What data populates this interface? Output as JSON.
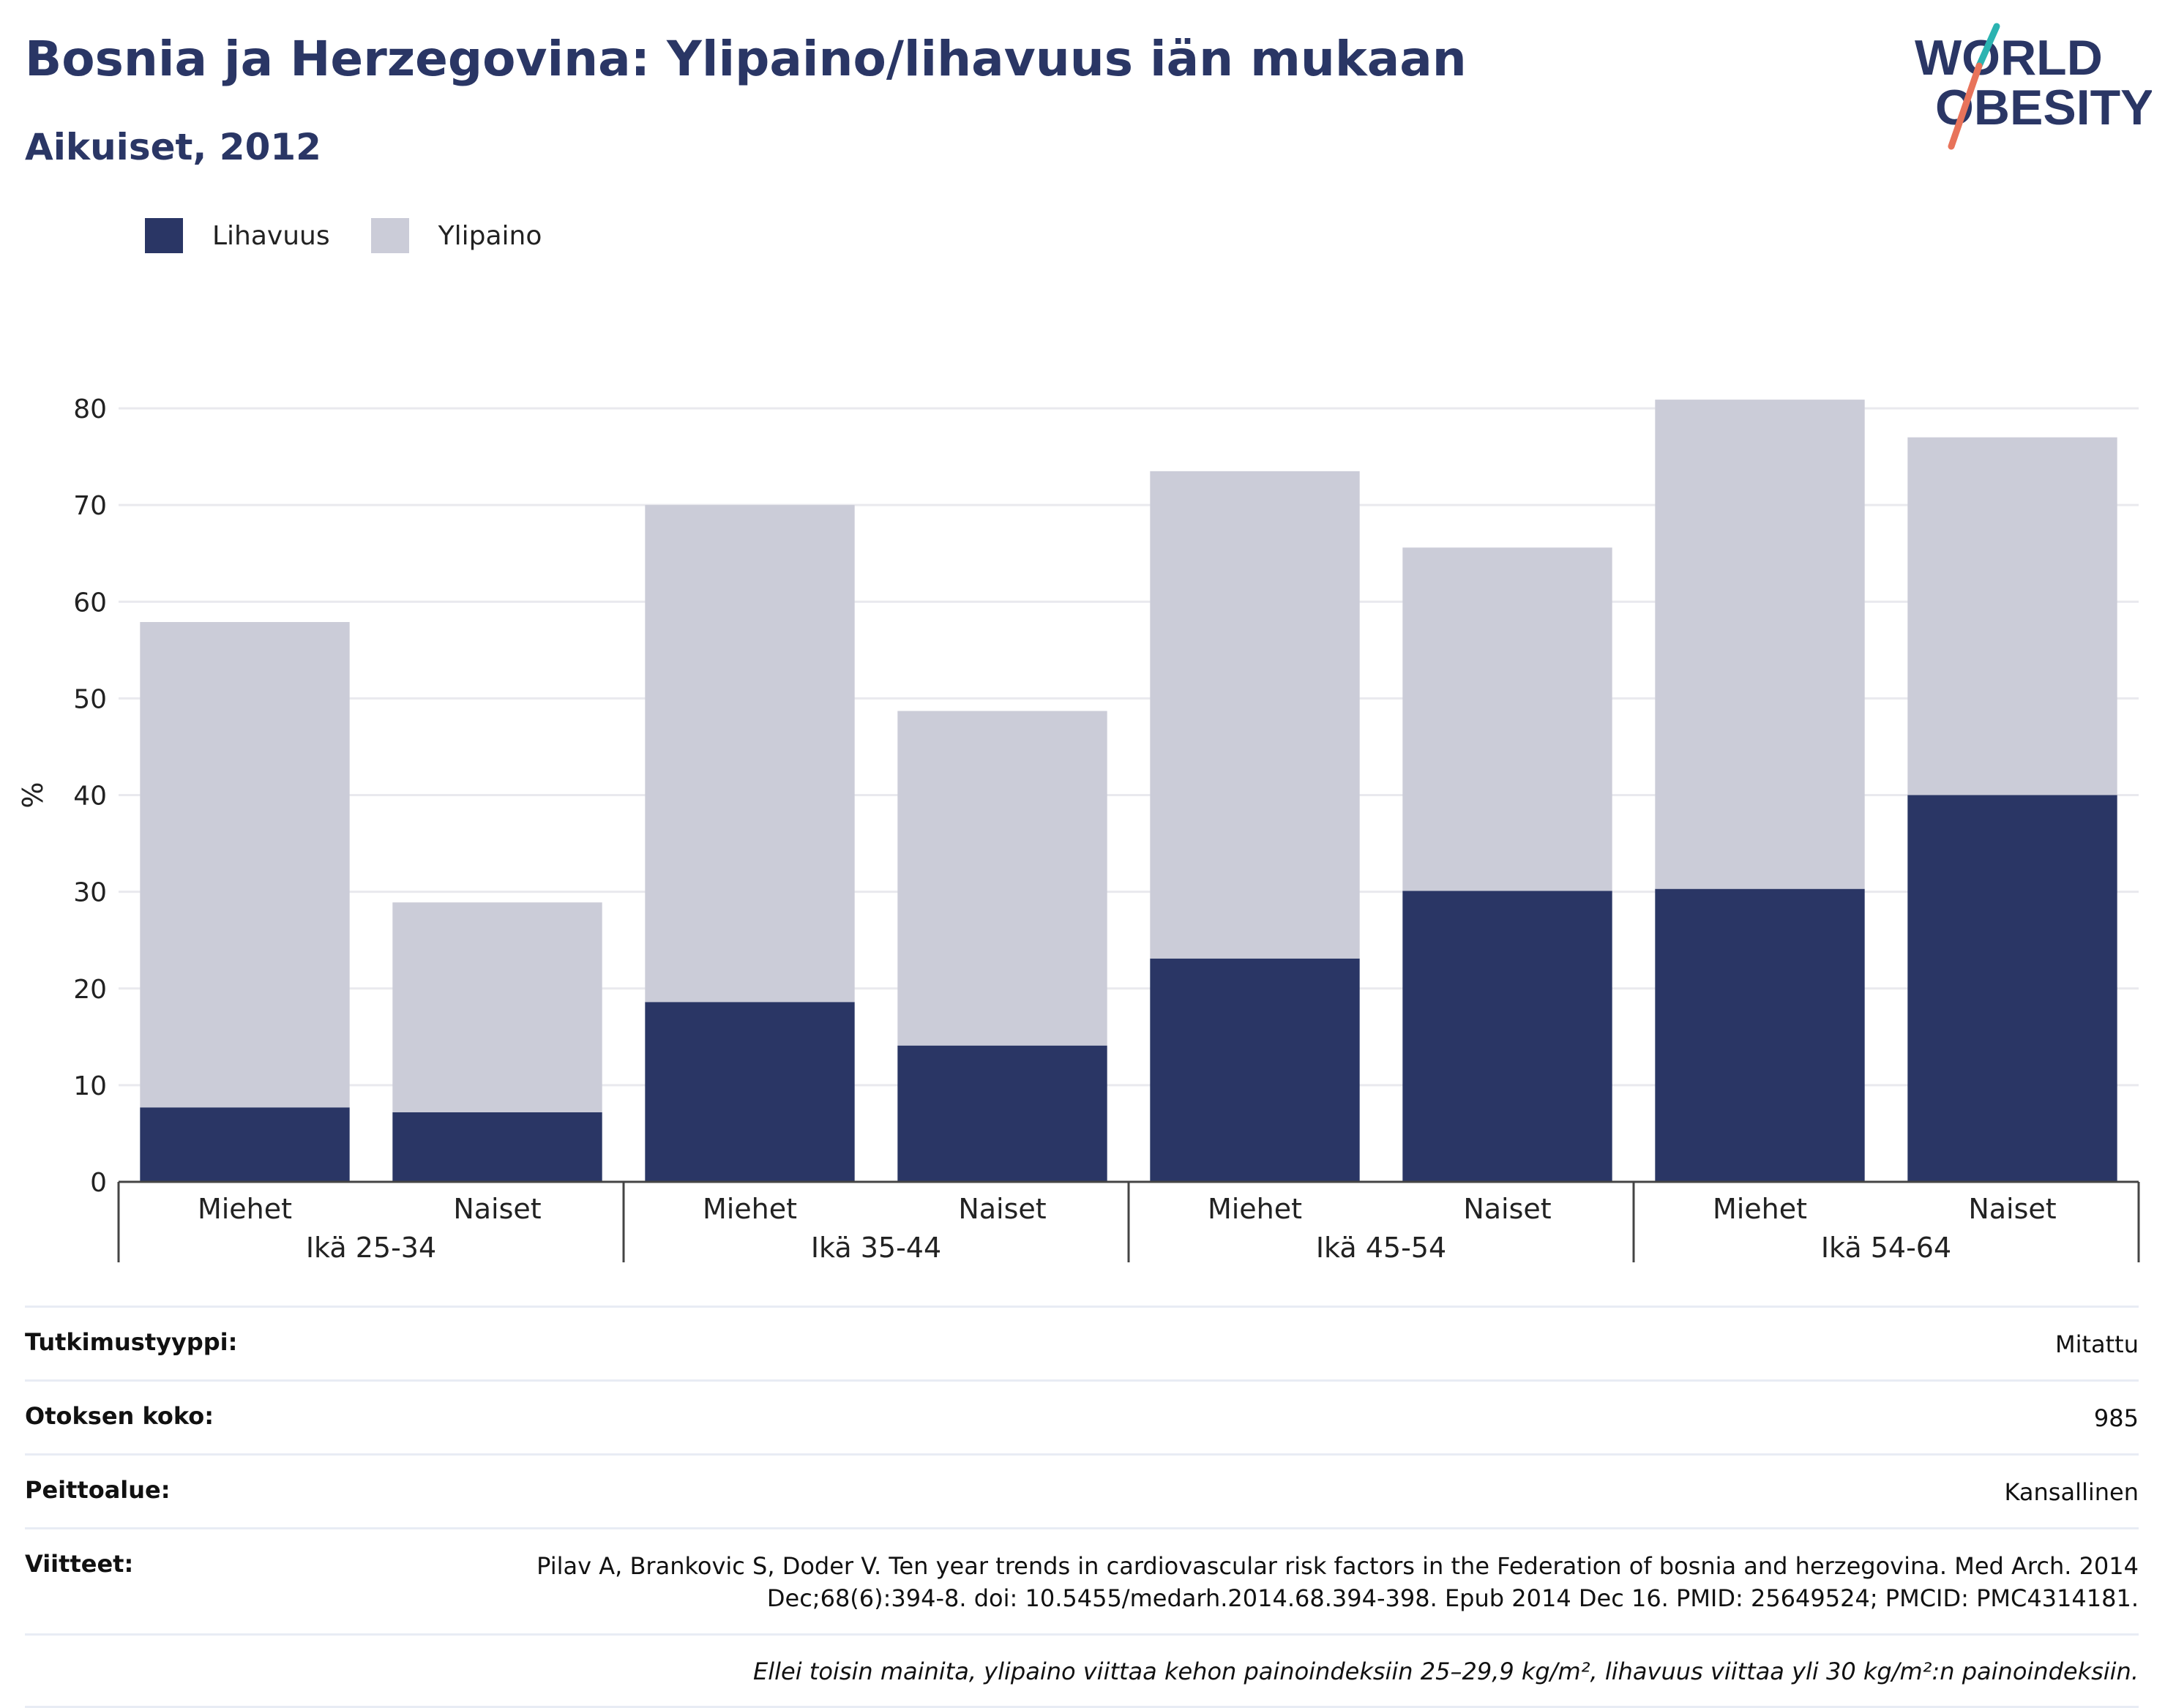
{
  "header": {
    "title": "Bosnia ja Herzegovina: Ylipaino/lihavuus iän mukaan",
    "subtitle": "Aikuiset, 2012",
    "logo_line1": "WORLD",
    "logo_line2": "OBESITY"
  },
  "colors": {
    "title": "#2a3665",
    "lihavuus": "#2a3665",
    "ylipaino": "#cbccd8",
    "logo_slash_top": "#2bb3b1",
    "logo_slash_bottom": "#e8735a"
  },
  "chart_data": {
    "type": "bar",
    "stacked": true,
    "ylabel": "%",
    "ylim": [
      0,
      80
    ],
    "yticks": [
      0,
      10,
      20,
      30,
      40,
      50,
      60,
      70,
      80
    ],
    "grid": true,
    "legend_position": "top-left",
    "groups": [
      "Ikä 25-34",
      "Ikä 35-44",
      "Ikä 45-54",
      "Ikä 54-64"
    ],
    "subcategories": [
      "Miehet",
      "Naiset"
    ],
    "categories": [
      "Miehet",
      "Naiset",
      "Miehet",
      "Naiset",
      "Miehet",
      "Naiset",
      "Miehet",
      "Naiset"
    ],
    "series": [
      {
        "name": "Lihavuus",
        "values": [
          7.7,
          7.2,
          18.6,
          14.1,
          23.1,
          30.1,
          30.3,
          40.0
        ]
      },
      {
        "name": "Ylipaino",
        "values": [
          50.2,
          21.7,
          51.4,
          34.6,
          50.4,
          35.5,
          50.6,
          37.0
        ]
      }
    ]
  },
  "meta": {
    "rows": [
      {
        "label": "Tutkimustyyppi:",
        "value": "Mitattu"
      },
      {
        "label": "Otoksen koko:",
        "value": "985"
      },
      {
        "label": "Peittoalue:",
        "value": "Kansallinen"
      },
      {
        "label": "Viitteet:",
        "value": "Pilav A, Brankovic S, Doder V. Ten year trends in cardiovascular risk factors in the Federation of bosnia and herzegovina. Med Arch. 2014 Dec;68(6):394-8. doi: 10.5455/medarh.2014.68.394-398. Epub 2014 Dec 16. PMID: 25649524; PMCID: PMC4314181."
      }
    ],
    "note": "Ellei toisin mainita, ylipaino viittaa kehon painoindeksiin 25–29,9 kg/m², lihavuus viittaa yli 30 kg/m²:n painoindeksiin."
  }
}
